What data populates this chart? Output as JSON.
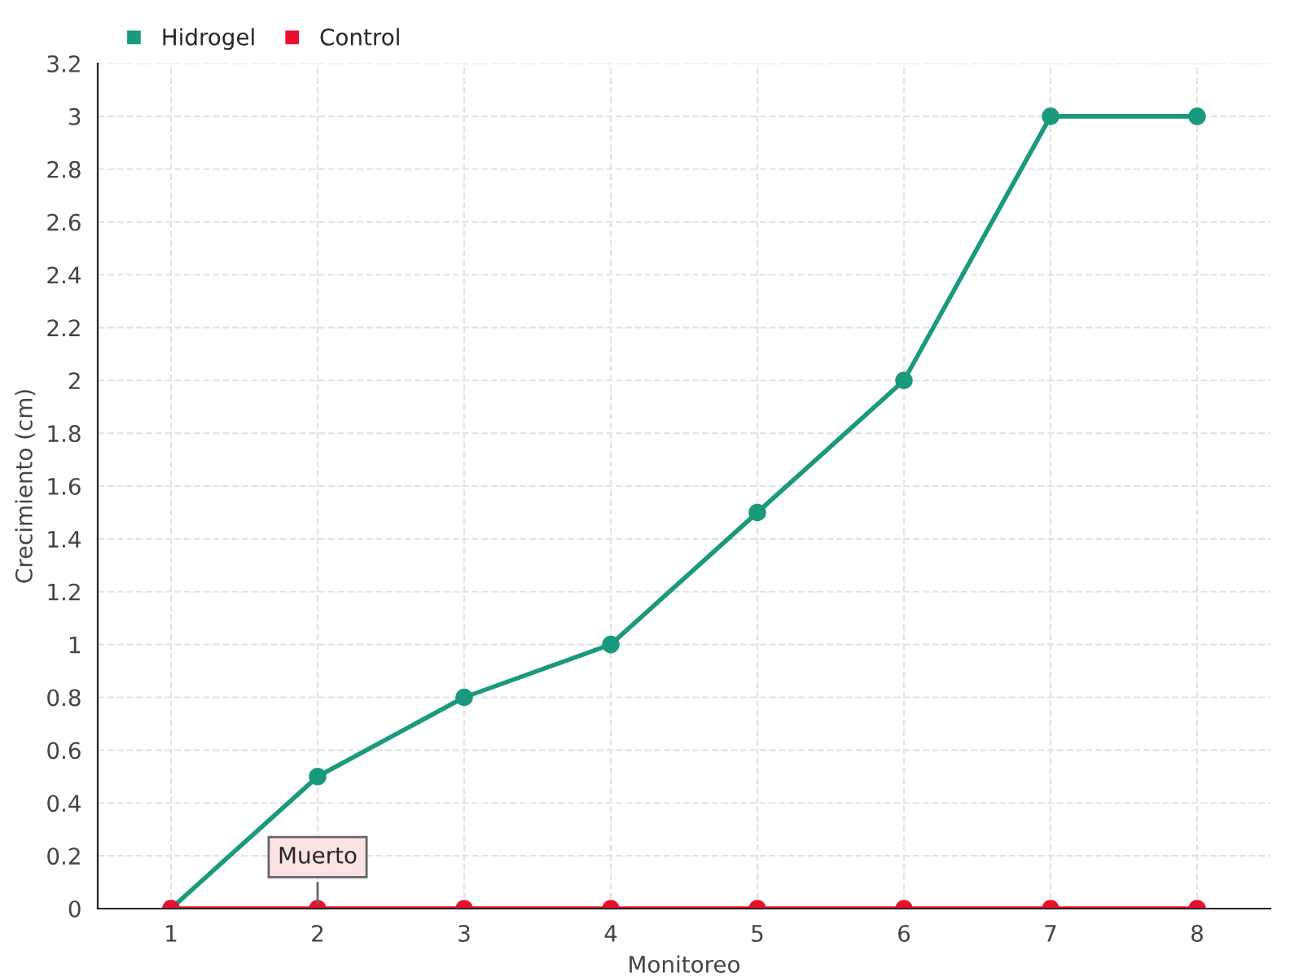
{
  "chart_data": {
    "type": "line",
    "xlabel": "Monitoreo",
    "ylabel": "Crecimiento (cm)",
    "categories": [
      "1",
      "2",
      "3",
      "4",
      "5",
      "6",
      "7",
      "8"
    ],
    "series": [
      {
        "name": "Hidrogel",
        "color": "#1a9a7c",
        "values": [
          0,
          0.5,
          0.8,
          1,
          1.5,
          2,
          3,
          3
        ]
      },
      {
        "name": "Control",
        "color": "#e8112d",
        "values": [
          0,
          0,
          0,
          0,
          0,
          0,
          0,
          0
        ]
      }
    ],
    "ylim": [
      0,
      3.2
    ],
    "yticks": [
      {
        "value": 0,
        "label": "0"
      },
      0.2,
      0.4,
      0.6,
      0.8,
      {
        "value": 1,
        "label": "1"
      },
      1.2,
      1.4,
      1.6,
      1.8,
      {
        "value": 2,
        "label": "2"
      },
      2.2,
      2.4,
      2.6,
      2.8,
      {
        "value": 3,
        "label": "3"
      },
      3.2
    ],
    "annotations": [
      {
        "text": "Muerto",
        "x": "2",
        "y": 0
      }
    ],
    "grid": true,
    "legend": "top left",
    "marker": "circle",
    "line_style": "solid"
  }
}
